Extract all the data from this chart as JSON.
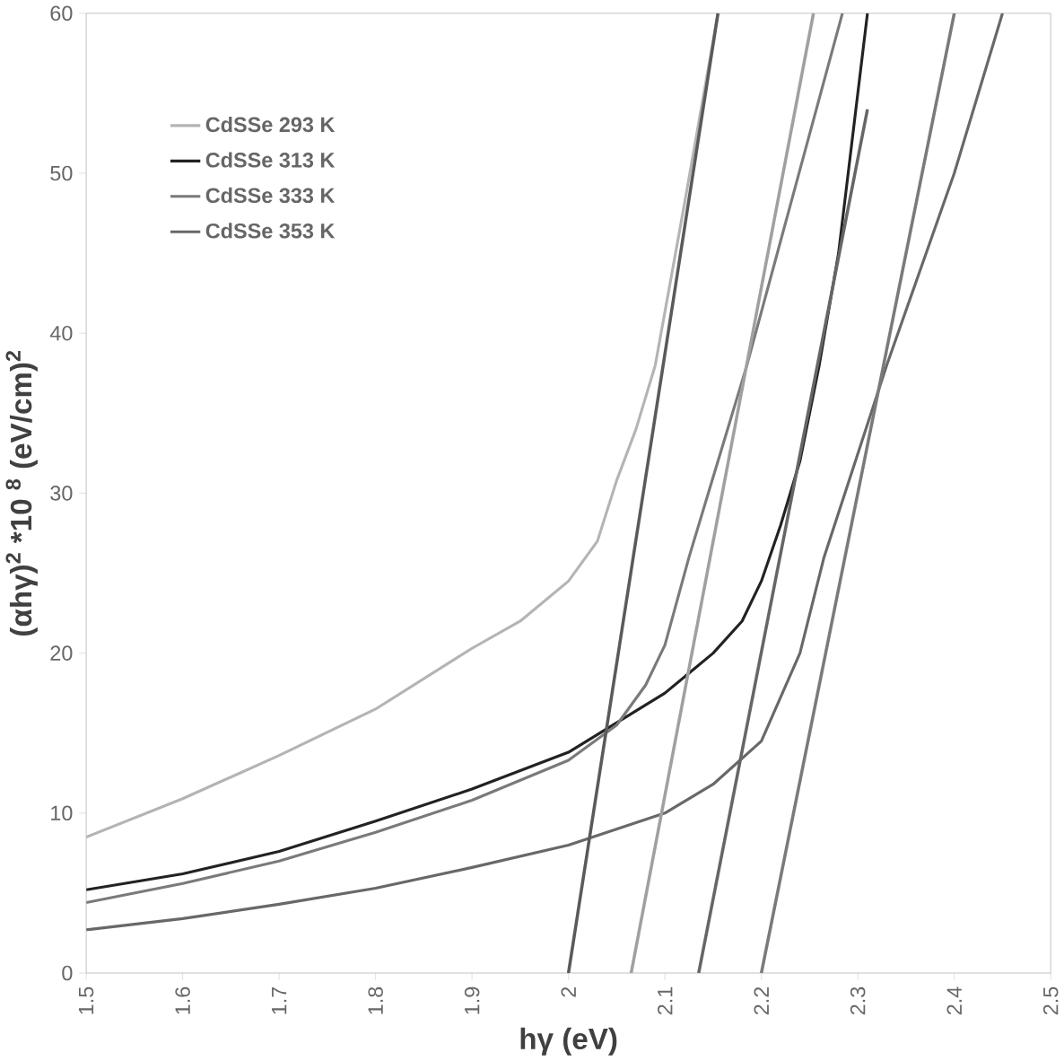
{
  "chart_data": {
    "type": "line",
    "xlabel": "hγ (eV)",
    "ylabel": "(αhγ)$^{2}$ *10 $^{8}$ (eV/cm)$^{2}$",
    "xlim": [
      1.5,
      2.5
    ],
    "ylim": [
      0,
      60
    ],
    "xticks": [
      1.5,
      1.6,
      1.7,
      1.8,
      1.9,
      2,
      2.1,
      2.2,
      2.3,
      2.4,
      2.5
    ],
    "yticks": [
      0,
      10,
      20,
      30,
      40,
      50,
      60
    ],
    "legend": "top left",
    "grid": false,
    "series": [
      {
        "name": "CdSSe **293 K**",
        "color": "#b4b4b4",
        "x": [
          1.5,
          1.6,
          1.7,
          1.8,
          1.9,
          1.95,
          2.0,
          2.03,
          2.05,
          2.07,
          2.09,
          2.12,
          2.155
        ],
        "values": [
          8.5,
          10.9,
          13.6,
          16.5,
          20.3,
          22,
          24.5,
          27,
          30.8,
          34,
          38,
          48,
          60
        ]
      },
      {
        "name": "CdSSe **313 K**",
        "color": "#222222",
        "x": [
          1.5,
          1.6,
          1.7,
          1.8,
          1.9,
          2.0,
          2.1,
          2.15,
          2.18,
          2.2,
          2.22,
          2.24,
          2.26,
          2.28,
          2.31
        ],
        "values": [
          5.2,
          6.2,
          7.6,
          9.5,
          11.5,
          13.8,
          17.5,
          20,
          22,
          24.5,
          28,
          32,
          38,
          45,
          60
        ]
      },
      {
        "name": "CdSSe **333 K**",
        "color": "#7a7a7a",
        "x": [
          1.5,
          1.6,
          1.7,
          1.8,
          1.9,
          2.0,
          2.05,
          2.08,
          2.1,
          2.125,
          2.15,
          2.185,
          2.23,
          2.284
        ],
        "values": [
          4.4,
          5.6,
          7,
          8.8,
          10.8,
          13.3,
          15.5,
          18,
          20.5,
          26,
          31,
          38,
          48,
          60
        ]
      },
      {
        "name": "CdSSe **353 K**",
        "color": "#686868",
        "x": [
          1.5,
          1.6,
          1.7,
          1.8,
          1.9,
          2.0,
          2.1,
          2.15,
          2.2,
          2.24,
          2.265,
          2.33,
          2.4,
          2.45
        ],
        "values": [
          2.7,
          3.4,
          4.3,
          5.3,
          6.6,
          8,
          10,
          11.8,
          14.5,
          20,
          26,
          38,
          50,
          60
        ]
      },
      {
        "type": "line",
        "color": "#5a5a5a",
        "x": [
          2.155,
          2.0
        ],
        "values": [
          60,
          0
        ]
      },
      {
        "type": "line",
        "color": "#a0a0a0",
        "x": [
          2.254,
          2.065
        ],
        "values": [
          60,
          0
        ]
      },
      {
        "type": "line",
        "color": "#666666",
        "x": [
          2.31,
          2.135
        ],
        "values": [
          54,
          0
        ]
      },
      {
        "type": "line",
        "color": "#7a7a7a",
        "x": [
          2.4,
          2.2
        ],
        "values": [
          60,
          0
        ]
      }
    ]
  }
}
